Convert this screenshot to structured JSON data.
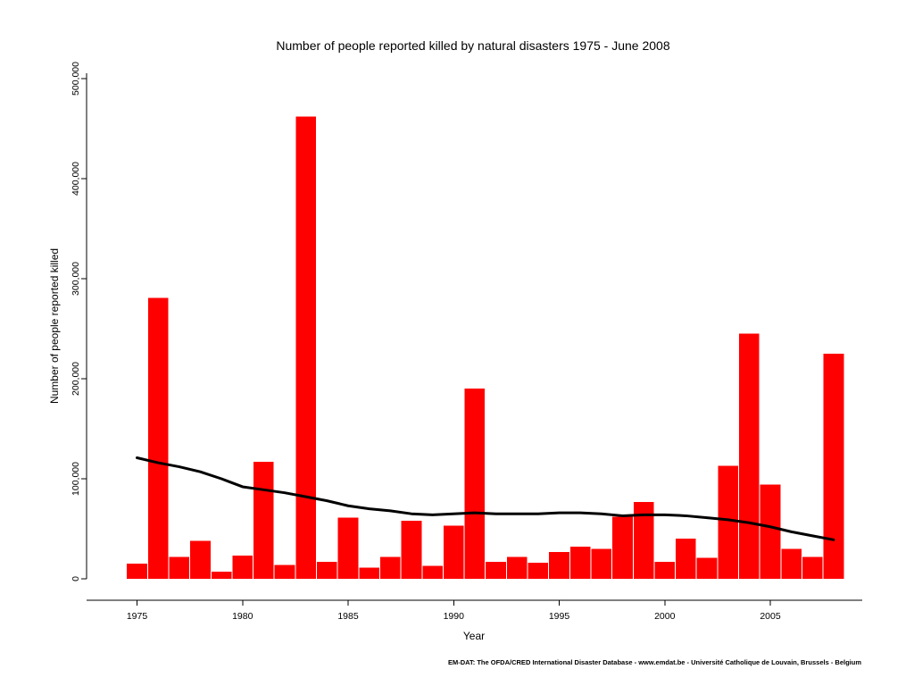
{
  "chart_data": {
    "type": "bar",
    "title": "Number of people reported killed by natural disasters 1975 - June 2008",
    "xlabel": "Year",
    "ylabel": "Number of people reported killed",
    "x": [
      1975,
      1976,
      1977,
      1978,
      1979,
      1980,
      1981,
      1982,
      1983,
      1984,
      1985,
      1986,
      1987,
      1988,
      1989,
      1990,
      1991,
      1992,
      1993,
      1994,
      1995,
      1996,
      1997,
      1998,
      1999,
      2000,
      2001,
      2002,
      2003,
      2004,
      2005,
      2006,
      2007,
      2008
    ],
    "values": [
      15000,
      281000,
      22000,
      38000,
      7000,
      23000,
      117000,
      14000,
      462000,
      17000,
      61000,
      11000,
      22000,
      58000,
      13000,
      53000,
      190000,
      17000,
      22000,
      16000,
      27000,
      32000,
      30000,
      62000,
      77000,
      17000,
      40000,
      21000,
      113000,
      245000,
      94000,
      30000,
      22000,
      225000
    ],
    "trend": {
      "x": [
        1975,
        1976,
        1977,
        1978,
        1979,
        1980,
        1981,
        1982,
        1983,
        1984,
        1985,
        1986,
        1987,
        1988,
        1989,
        1990,
        1991,
        1992,
        1993,
        1994,
        1995,
        1996,
        1997,
        1998,
        1999,
        2000,
        2001,
        2002,
        2003,
        2004,
        2005,
        2006,
        2007,
        2008
      ],
      "values": [
        121000,
        116000,
        112000,
        107000,
        100000,
        92000,
        89000,
        86000,
        82000,
        78000,
        73000,
        70000,
        68000,
        65000,
        64000,
        65000,
        66000,
        65000,
        65000,
        65000,
        66000,
        66000,
        65000,
        63000,
        64000,
        64000,
        63000,
        61000,
        59000,
        56000,
        52000,
        47000,
        43000,
        39000
      ]
    },
    "ylim": [
      0,
      500000
    ],
    "yticks": [
      0,
      100000,
      200000,
      300000,
      400000,
      500000
    ],
    "ytick_labels": [
      "0",
      "100,000",
      "200,000",
      "300,000",
      "400,000",
      "500,000"
    ],
    "xticks": [
      1975,
      1980,
      1985,
      1990,
      1995,
      2000,
      2005
    ],
    "xtick_labels": [
      "1975",
      "1980",
      "1985",
      "1990",
      "1995",
      "2000",
      "2005"
    ],
    "bar_color": "#ff0000",
    "trend_color": "#000000",
    "grid": false,
    "legend": "none"
  },
  "footer": {
    "credit": "EM-DAT: The OFDA/CRED International Disaster Database - www.emdat.be - Université Catholique de Louvain, Brussels - Belgium"
  }
}
